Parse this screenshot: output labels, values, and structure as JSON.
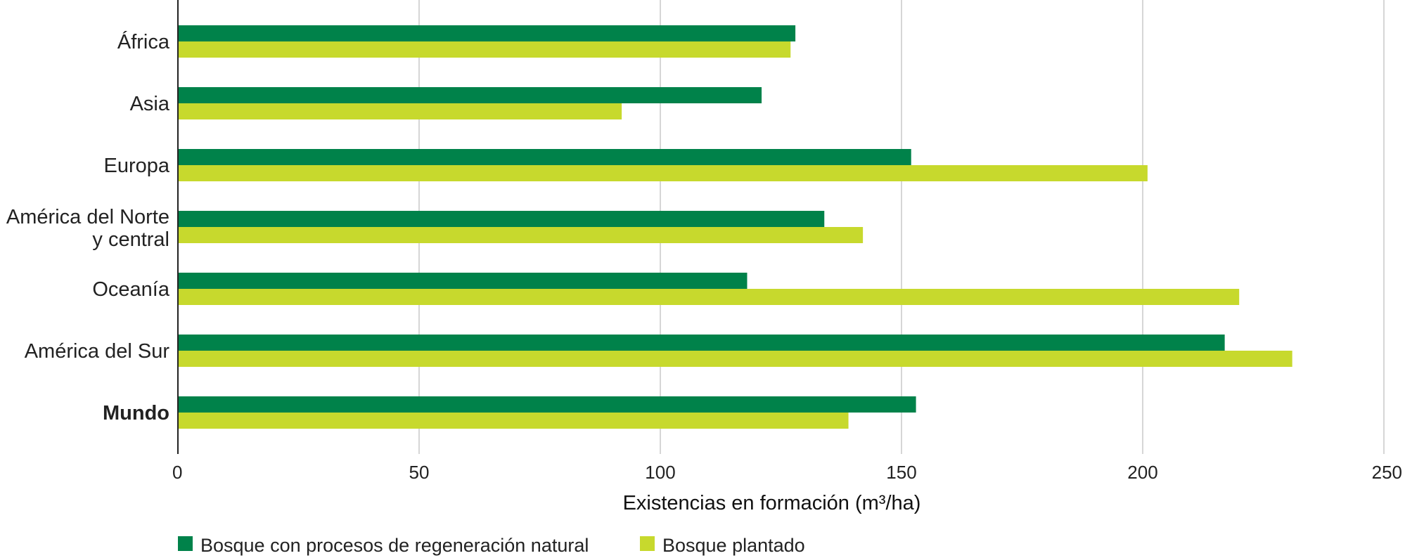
{
  "chart_data": {
    "type": "bar",
    "orientation": "horizontal",
    "categories": [
      "África",
      "Asia",
      "Europa",
      "América del Norte y central",
      "Oceanía",
      "América del Sur",
      "Mundo"
    ],
    "category_lines": [
      [
        "África"
      ],
      [
        "Asia"
      ],
      [
        "Europa"
      ],
      [
        "América del Norte",
        "y central"
      ],
      [
        "Oceanía"
      ],
      [
        "América del Sur"
      ],
      [
        "Mundo"
      ]
    ],
    "series": [
      {
        "name": "Bosque con procesos de regeneración natural",
        "color": "#00824a",
        "values": [
          128,
          121,
          152,
          134,
          118,
          217,
          153
        ]
      },
      {
        "name": "Bosque plantado",
        "color": "#c7d92d",
        "values": [
          127,
          92,
          201,
          142,
          220,
          231,
          139
        ]
      }
    ],
    "xlabel": "Existencias en formación (m³/ha)",
    "xlim": [
      0,
      250
    ],
    "xticks": [
      0,
      50,
      100,
      150,
      200,
      250
    ],
    "grid": "vertical",
    "legend_position": "bottom-left",
    "bold_category": "Mundo"
  }
}
